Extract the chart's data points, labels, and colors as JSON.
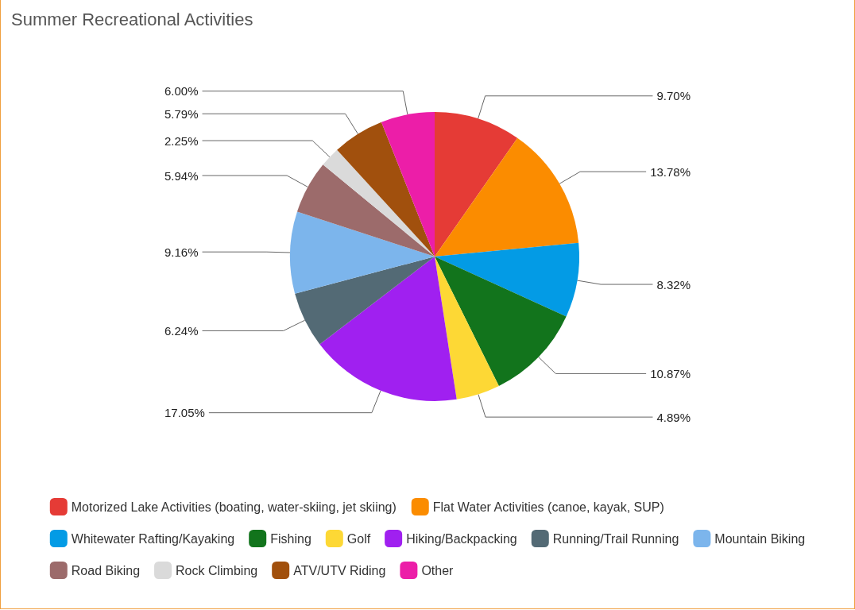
{
  "chart_data": {
    "type": "pie",
    "title": "Summer Recreational Activities",
    "categories": [
      "Motorized Lake Activities (boating, water-skiing, jet skiing)",
      "Flat Water Activities (canoe, kayak, SUP)",
      "Whitewater Rafting/Kayaking",
      "Fishing",
      "Golf",
      "Hiking/Backpacking",
      "Running/Trail Running",
      "Mountain Biking",
      "Road Biking",
      "Rock Climbing",
      "ATV/UTV Riding",
      "Other"
    ],
    "values": [
      9.7,
      13.78,
      8.32,
      10.87,
      4.89,
      17.05,
      6.24,
      9.16,
      5.94,
      2.25,
      5.79,
      6.0
    ],
    "value_labels": [
      "9.70%",
      "13.78%",
      "8.32%",
      "10.87%",
      "4.89%",
      "17.05%",
      "6.24%",
      "9.16%",
      "5.94%",
      "2.25%",
      "5.79%",
      "6.00%"
    ],
    "colors": [
      "#e53b36",
      "#fb8c00",
      "#039be5",
      "#12741c",
      "#fdd835",
      "#a020f0",
      "#536a75",
      "#7cb5ec",
      "#9c6b6b",
      "#dadada",
      "#a1500d",
      "#ec1ea8"
    ],
    "legend": "bottom"
  }
}
